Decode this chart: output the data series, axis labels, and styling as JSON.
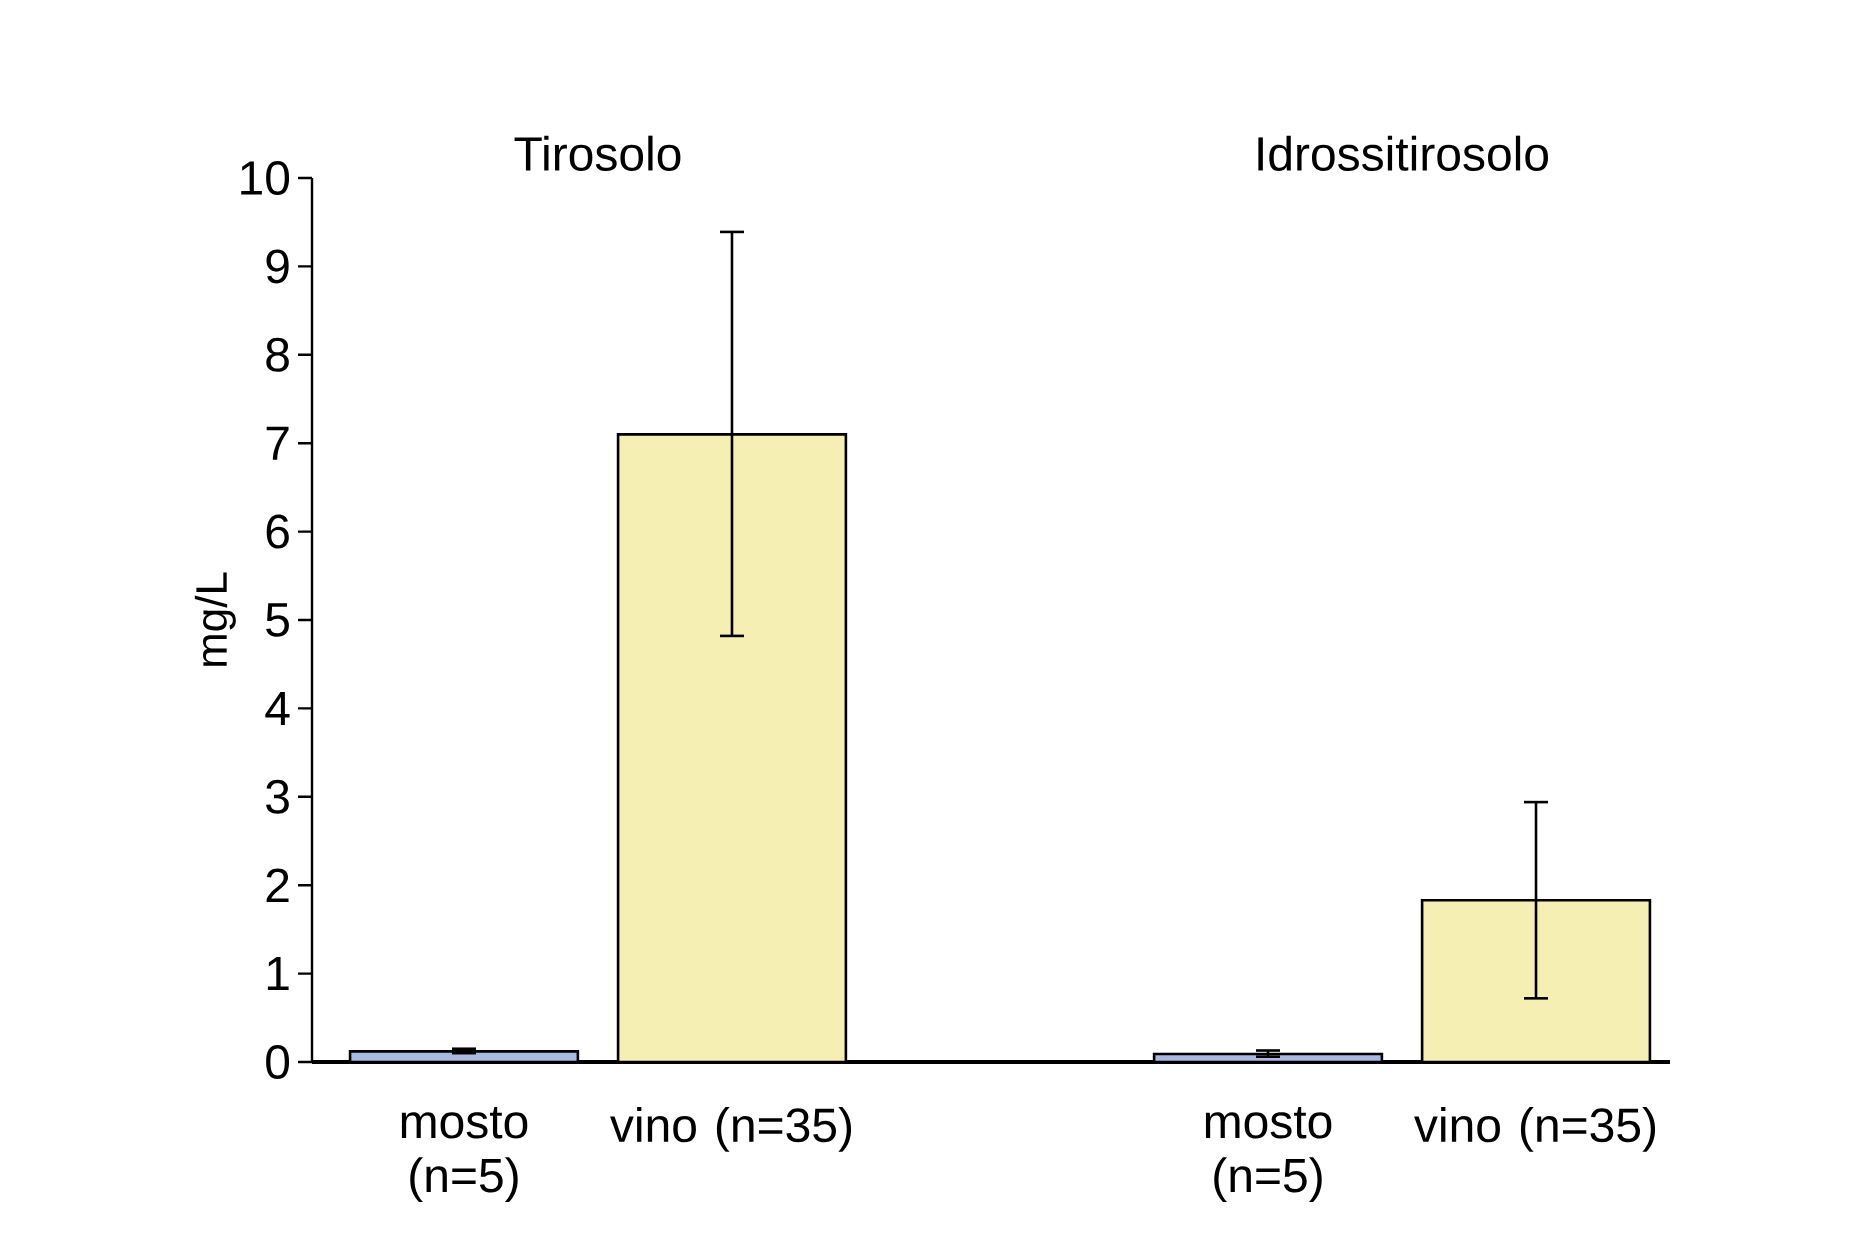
{
  "chart_data": {
    "type": "bar",
    "ylabel": "mg/L",
    "categories": [
      "mosto (n=5)",
      "vino (n=35)",
      null,
      "mosto (n=5)",
      "vino (n=35)"
    ],
    "values": [
      0.12,
      7.1,
      null,
      0.09,
      1.83
    ],
    "colors": [
      "#a9b9df",
      "#f5efb4",
      null,
      "#a9b9df",
      "#f5efb4"
    ],
    "errors": [
      [
        0.1,
        0.15
      ],
      [
        4.82,
        9.39
      ],
      null,
      [
        0.06,
        0.13
      ],
      [
        0.72,
        2.94
      ]
    ],
    "ylim": [
      0,
      10
    ],
    "yticks": [
      0,
      1,
      2,
      3,
      4,
      5,
      6,
      7,
      8,
      9,
      10
    ],
    "annotations": [
      "Tirosolo",
      "Idrossitirosolo"
    ],
    "grid": false
  }
}
